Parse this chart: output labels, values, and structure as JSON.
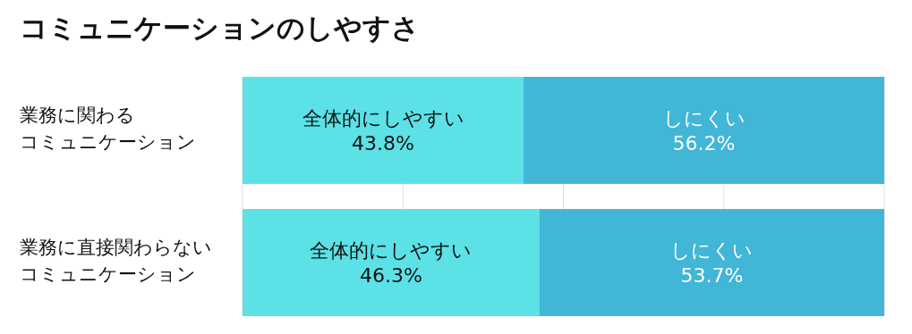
{
  "chart_data": {
    "type": "bar",
    "title": "コミュニケーションのしやすさ",
    "orientation": "horizontal",
    "stacked": true,
    "categories": [
      "業務に関わるコミュニケーション",
      "業務に直接関わらないコミュニケーション"
    ],
    "series": [
      {
        "name": "全体的にしやすい",
        "color": "#5ce1e6",
        "values": [
          43.8,
          46.3
        ],
        "value_labels": [
          "43.8%",
          "46.3%"
        ]
      },
      {
        "name": "しにくい",
        "color": "#41b6d6",
        "values": [
          56.2,
          53.7
        ],
        "value_labels": [
          "56.2%",
          "53.7%"
        ]
      }
    ],
    "xlim": [
      0,
      100
    ],
    "xticks": [
      0,
      25,
      50,
      75,
      100
    ],
    "tick_labels": false,
    "grid": "x"
  }
}
